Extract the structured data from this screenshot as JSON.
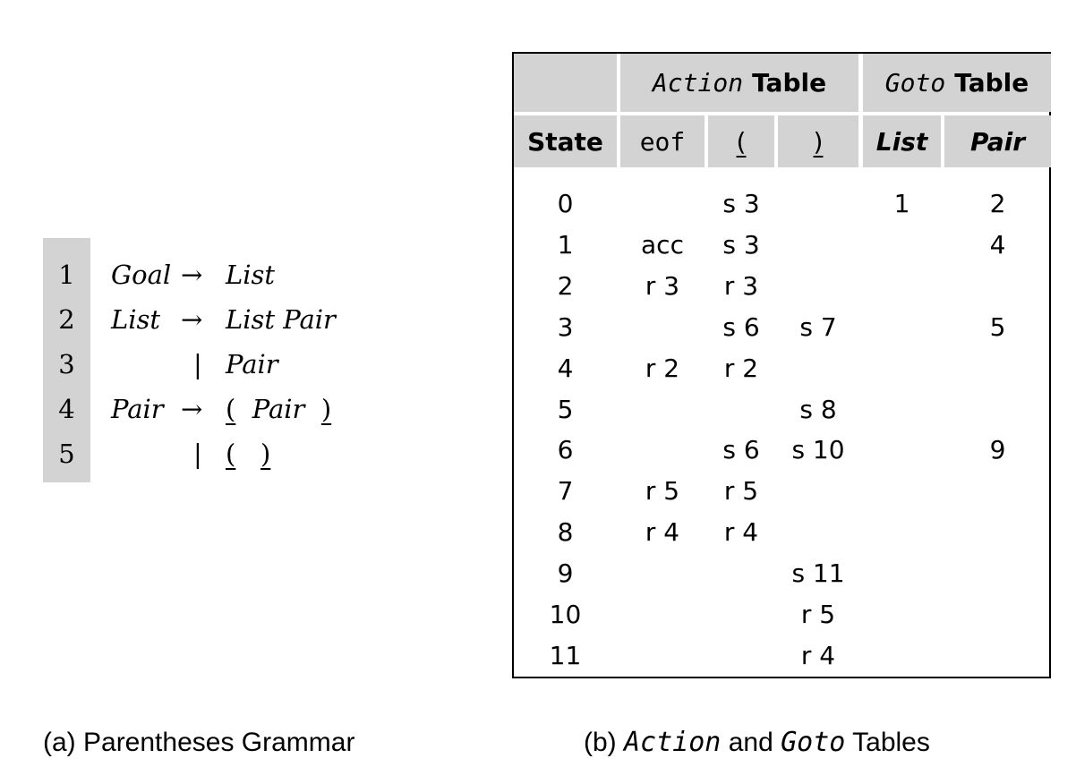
{
  "grammar": {
    "rules": [
      {
        "num": "1",
        "lhs": "Goal",
        "sep": "→",
        "rhs_parts": [
          {
            "t": "List",
            "k": "it"
          }
        ]
      },
      {
        "num": "2",
        "lhs": "List",
        "sep": "→",
        "rhs_parts": [
          {
            "t": "List Pair",
            "k": "it"
          }
        ]
      },
      {
        "num": "3",
        "lhs": "",
        "sep": "|",
        "rhs_parts": [
          {
            "t": "Pair",
            "k": "it"
          }
        ]
      },
      {
        "num": "4",
        "lhs": "Pair",
        "sep": "→",
        "rhs_parts": [
          {
            "t": "(",
            "k": "tok"
          },
          {
            "t": "  ",
            "k": ""
          },
          {
            "t": "Pair",
            "k": "it"
          },
          {
            "t": "  ",
            "k": ""
          },
          {
            "t": ")",
            "k": "tok"
          }
        ]
      },
      {
        "num": "5",
        "lhs": "",
        "sep": "|",
        "rhs_parts": [
          {
            "t": "(",
            "k": "tok"
          },
          {
            "t": "   ",
            "k": ""
          },
          {
            "t": ")",
            "k": "tok"
          }
        ]
      }
    ],
    "caption": "(a) Parentheses Grammar"
  },
  "tables": {
    "action_title_mono": "Action",
    "action_title_word": "Table",
    "goto_title_mono": "Goto",
    "goto_title_word": "Table",
    "columns": {
      "state": "State",
      "eof": "eof",
      "lparen": "(",
      "rparen": ")",
      "list": "List",
      "pair": "Pair"
    },
    "rows": [
      [
        "0",
        "",
        "s 3",
        "",
        "1",
        "2"
      ],
      [
        "1",
        "acc",
        "s 3",
        "",
        "",
        "4"
      ],
      [
        "2",
        "r 3",
        "r 3",
        "",
        "",
        ""
      ],
      [
        "3",
        "",
        "s 6",
        "s 7",
        "",
        "5"
      ],
      [
        "4",
        "r 2",
        "r 2",
        "",
        "",
        ""
      ],
      [
        "5",
        "",
        "",
        "s 8",
        "",
        ""
      ],
      [
        "6",
        "",
        "s 6",
        "s 10",
        "",
        "9"
      ],
      [
        "7",
        "r 5",
        "r 5",
        "",
        "",
        ""
      ],
      [
        "8",
        "r 4",
        "r 4",
        "",
        "",
        ""
      ],
      [
        "9",
        "",
        "",
        "s 11",
        "",
        ""
      ],
      [
        "10",
        "",
        "",
        "r 5",
        "",
        ""
      ],
      [
        "11",
        "",
        "",
        "r 4",
        "",
        ""
      ]
    ],
    "caption_prefix": "(b) ",
    "caption_action": "Action",
    "caption_and": " and ",
    "caption_goto": "Goto",
    "caption_suffix": " Tables"
  },
  "colors": {
    "header_fill": "#d3d3d3",
    "border": "#000000"
  }
}
